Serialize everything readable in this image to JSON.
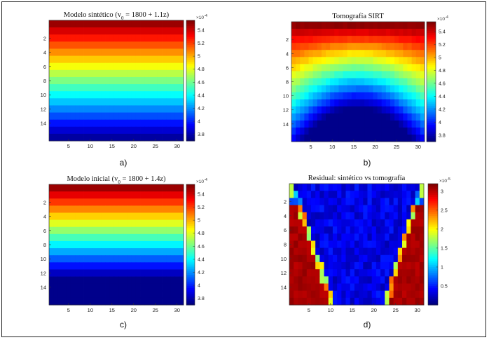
{
  "chart_data": [
    {
      "id": "a",
      "type": "heatmap",
      "title_parts": [
        "Modelo sintético (v",
        "0",
        " = 1800 + 1.1z)"
      ],
      "panel_label": "a)",
      "x_ticks": [
        "5",
        "10",
        "15",
        "20",
        "25",
        "30"
      ],
      "y_ticks": [
        "2",
        "4",
        "6",
        "8",
        "10",
        "12",
        "14"
      ],
      "grid": [
        31,
        16
      ],
      "colorbar": {
        "exponent": "×10",
        "exponent_power": "-4",
        "min": 3.7,
        "max": 5.55,
        "ticks": [
          "5.4",
          "5.2",
          "5",
          "4.8",
          "4.6",
          "4.4",
          "4.2",
          "4",
          "3.8"
        ]
      },
      "pattern": "layers",
      "row_values": [
        5.5,
        5.39,
        5.28,
        5.17,
        5.06,
        4.95,
        4.84,
        4.73,
        4.62,
        4.51,
        4.4,
        4.29,
        4.18,
        4.07,
        3.96,
        3.85,
        3.76
      ]
    },
    {
      "id": "b",
      "type": "heatmap",
      "title_parts": [
        "Tomografía SIRT"
      ],
      "panel_label": "b)",
      "x_ticks": [
        "5",
        "10",
        "15",
        "20",
        "25",
        "30"
      ],
      "y_ticks": [
        "2",
        "4",
        "6",
        "8",
        "10",
        "12",
        "14"
      ],
      "grid": [
        31,
        16
      ],
      "colorbar": {
        "exponent": "×10",
        "exponent_power": "-4",
        "min": 3.7,
        "max": 5.55,
        "ticks": [
          "5.4",
          "5.2",
          "5",
          "4.8",
          "4.6",
          "4.4",
          "4.2",
          "4",
          "3.8"
        ]
      },
      "pattern": "tomography"
    },
    {
      "id": "c",
      "type": "heatmap",
      "title_parts": [
        "Modelo inicial (v",
        "0",
        " = 1800 + 1.4z)"
      ],
      "panel_label": "c)",
      "x_ticks": [
        "5",
        "10",
        "15",
        "20",
        "25",
        "30"
      ],
      "y_ticks": [
        "2",
        "4",
        "6",
        "8",
        "10",
        "12",
        "14"
      ],
      "grid": [
        31,
        16
      ],
      "colorbar": {
        "exponent": "×10",
        "exponent_power": "-4",
        "min": 3.7,
        "max": 5.55,
        "ticks": [
          "5.4",
          "5.2",
          "5",
          "4.8",
          "4.6",
          "4.4",
          "4.2",
          "4",
          "3.8"
        ]
      },
      "pattern": "layers",
      "row_values": [
        5.5,
        5.36,
        5.22,
        5.08,
        4.94,
        4.8,
        4.66,
        4.52,
        4.38,
        4.24,
        4.1,
        3.96,
        3.82,
        3.72,
        3.72,
        3.72,
        3.72
      ]
    },
    {
      "id": "d",
      "type": "heatmap",
      "title_parts": [
        "Residual:  sintético vs tomografía"
      ],
      "panel_label": "d)",
      "x_ticks": [
        "5",
        "10",
        "15",
        "20",
        "25",
        "30"
      ],
      "y_ticks": [
        "2",
        "4",
        "6",
        "8",
        "10",
        "12",
        "14"
      ],
      "grid": [
        31,
        16
      ],
      "colorbar": {
        "exponent": "×10",
        "exponent_power": "-5",
        "min": 0,
        "max": 3.2,
        "ticks": [
          "3",
          "2.5",
          "2",
          "1.5",
          "1",
          "0.5"
        ]
      },
      "pattern": "residual"
    }
  ]
}
